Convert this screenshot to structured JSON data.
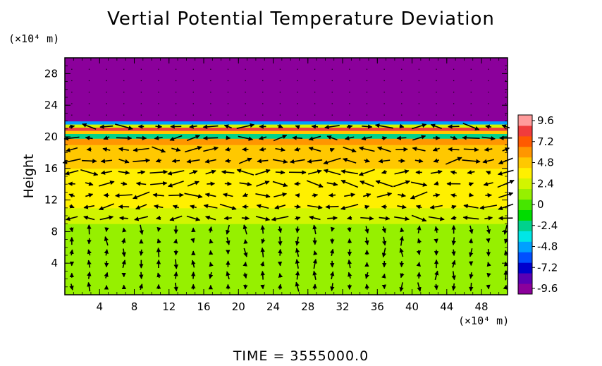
{
  "chart_data": {
    "type": "heatmap",
    "title": "Vertial Potential Temperature Deviation",
    "ylabel": "Height",
    "y_unit": "(×10⁴ m)",
    "x_unit": "(×10⁴ m)",
    "xlim": [
      0,
      51
    ],
    "ylim": [
      0,
      30
    ],
    "x_ticks": [
      "4",
      "8",
      "12",
      "16",
      "20",
      "24",
      "28",
      "32",
      "36",
      "40",
      "44",
      "48"
    ],
    "y_ticks": [
      "4",
      "8",
      "12",
      "16",
      "20",
      "24",
      "28"
    ],
    "colorbar": {
      "min": -9.6,
      "max": 9.6,
      "labels": [
        "9.6",
        "7.2",
        "4.8",
        "2.4",
        "0",
        "-2.4",
        "-4.8",
        "-7.2",
        "-9.6"
      ],
      "colors": [
        "#8b009b",
        "#5a00b4",
        "#0000cd",
        "#0050ff",
        "#00a0ff",
        "#00e6e6",
        "#00d28c",
        "#00dc00",
        "#46e600",
        "#96f000",
        "#d2f500",
        "#fff000",
        "#ffc800",
        "#ff9600",
        "#ff5a00",
        "#f03c3c",
        "#ff9b9b"
      ]
    },
    "bands": [
      {
        "y0": 0,
        "y1": 9,
        "value": 1.0
      },
      {
        "y0": 9,
        "y1": 11,
        "value": 2.6
      },
      {
        "y0": 11,
        "y1": 16,
        "value": 3.4
      },
      {
        "y0": 16,
        "y1": 19,
        "value": 4.3
      },
      {
        "y0": 19,
        "y1": 19.8,
        "value": 5.5
      },
      {
        "y0": 19.8,
        "y1": 20.4,
        "value": -2.5
      },
      {
        "y0": 20.4,
        "y1": 20.8,
        "value": 4.0
      },
      {
        "y0": 20.8,
        "y1": 21.2,
        "value": 7.5
      },
      {
        "y0": 21.2,
        "y1": 21.6,
        "value": 2.0
      },
      {
        "y0": 21.6,
        "y1": 22,
        "value": -4.0
      },
      {
        "y0": 22,
        "y1": 30,
        "value": -9.6
      }
    ],
    "wind_field": "vector arrows (u, w)"
  },
  "time_label": "TIME  =  3555000.0"
}
